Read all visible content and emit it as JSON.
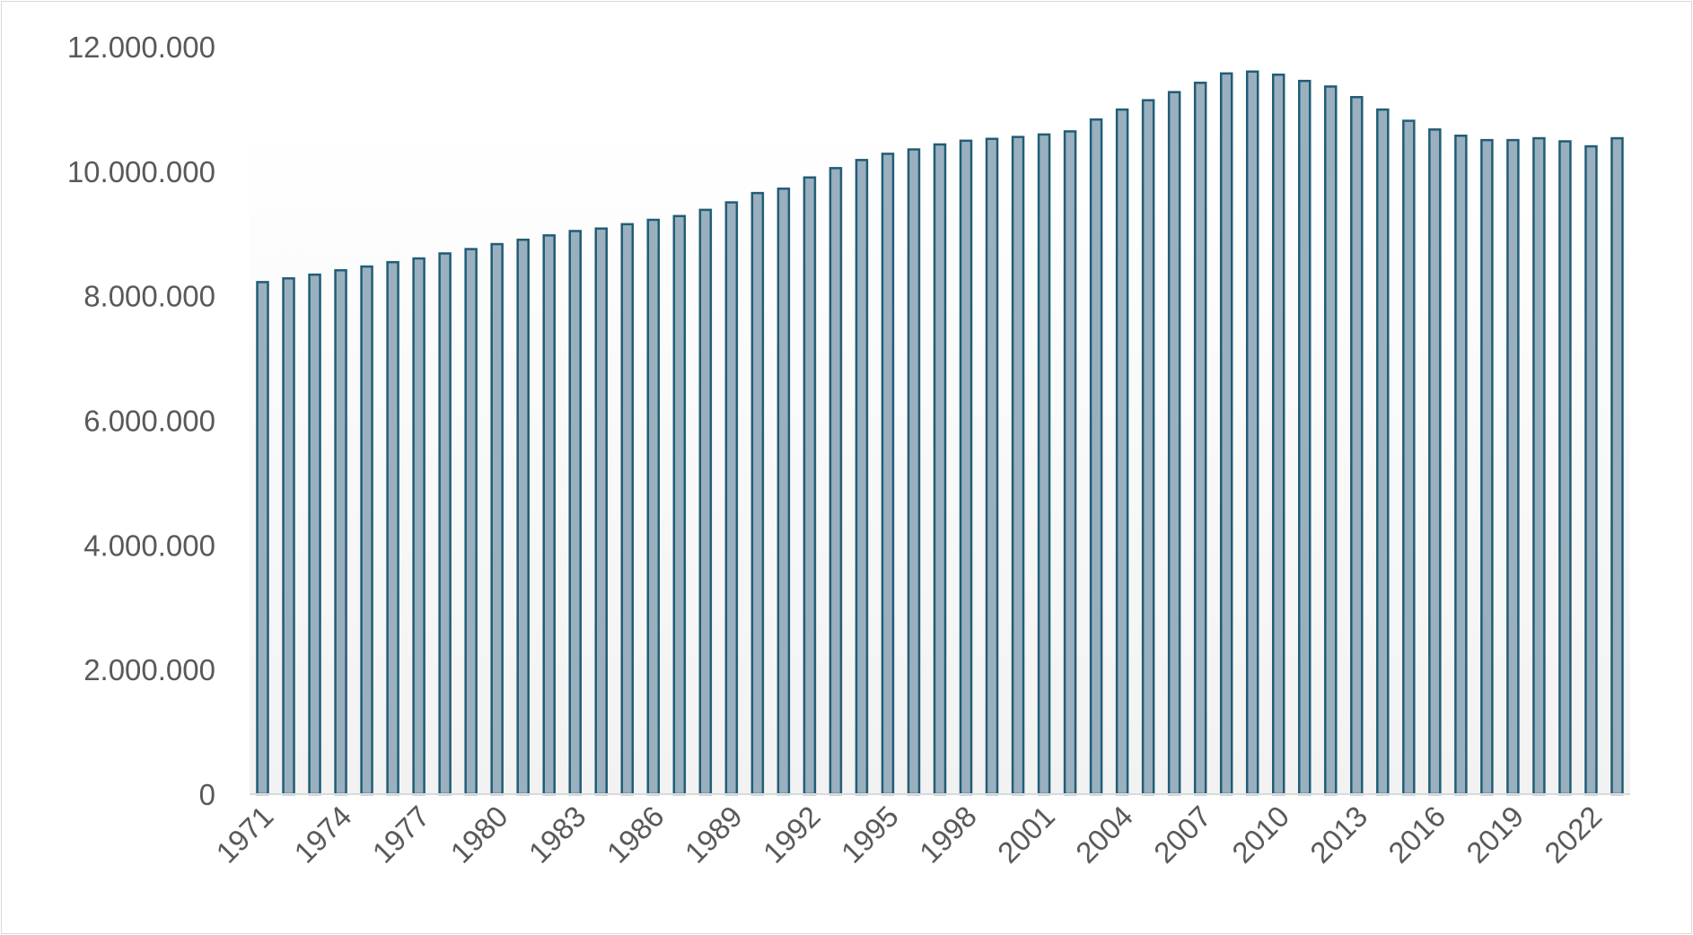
{
  "chart_data": {
    "type": "bar",
    "title": "",
    "xlabel": "",
    "ylabel": "",
    "ylim": [
      0,
      12000000
    ],
    "y_ticks": [
      {
        "value": 0,
        "label": "0"
      },
      {
        "value": 2000000,
        "label": "2.000.000"
      },
      {
        "value": 4000000,
        "label": "4.000.000"
      },
      {
        "value": 6000000,
        "label": "6.000.000"
      },
      {
        "value": 8000000,
        "label": "8.000.000"
      },
      {
        "value": 10000000,
        "label": "10.000.000"
      },
      {
        "value": 12000000,
        "label": "12.000.000"
      }
    ],
    "x_tick_labels": [
      "1971",
      "1974",
      "1977",
      "1980",
      "1983",
      "1986",
      "1989",
      "1992",
      "1995",
      "1998",
      "2001",
      "2004",
      "2007",
      "2010",
      "2013",
      "2016",
      "2019",
      "2022"
    ],
    "categories": [
      "1971",
      "1972",
      "1973",
      "1974",
      "1975",
      "1976",
      "1977",
      "1978",
      "1979",
      "1980",
      "1981",
      "1982",
      "1983",
      "1984",
      "1985",
      "1986",
      "1987",
      "1988",
      "1989",
      "1990",
      "1991",
      "1992",
      "1993",
      "1994",
      "1995",
      "1996",
      "1997",
      "1998",
      "1999",
      "2000",
      "2001",
      "2002",
      "2003",
      "2004",
      "2005",
      "2006",
      "2007",
      "2008",
      "2009",
      "2010",
      "2011",
      "2012",
      "2013",
      "2014",
      "2015",
      "2016",
      "2017",
      "2018",
      "2019",
      "2020",
      "2021",
      "2022",
      "2023"
    ],
    "values": [
      8220000,
      8280000,
      8340000,
      8410000,
      8470000,
      8540000,
      8600000,
      8680000,
      8750000,
      8830000,
      8900000,
      8970000,
      9040000,
      9080000,
      9150000,
      9220000,
      9280000,
      9380000,
      9500000,
      9650000,
      9720000,
      9900000,
      10050000,
      10180000,
      10280000,
      10350000,
      10430000,
      10490000,
      10520000,
      10550000,
      10590000,
      10640000,
      10830000,
      10990000,
      11140000,
      11270000,
      11420000,
      11570000,
      11600000,
      11550000,
      11450000,
      11360000,
      11190000,
      10990000,
      10810000,
      10670000,
      10570000,
      10500000,
      10500000,
      10530000,
      10480000,
      10400000,
      10530000
    ],
    "grid": false,
    "legend": "none",
    "colors": {
      "bar_fill": "#9ab0bf",
      "bar_stroke": "#215d76",
      "axis": "#d9d9d9",
      "text": "#595959",
      "plot_bg_top": "#ffffff",
      "plot_bg_bottom": "#f2f2f2"
    }
  }
}
